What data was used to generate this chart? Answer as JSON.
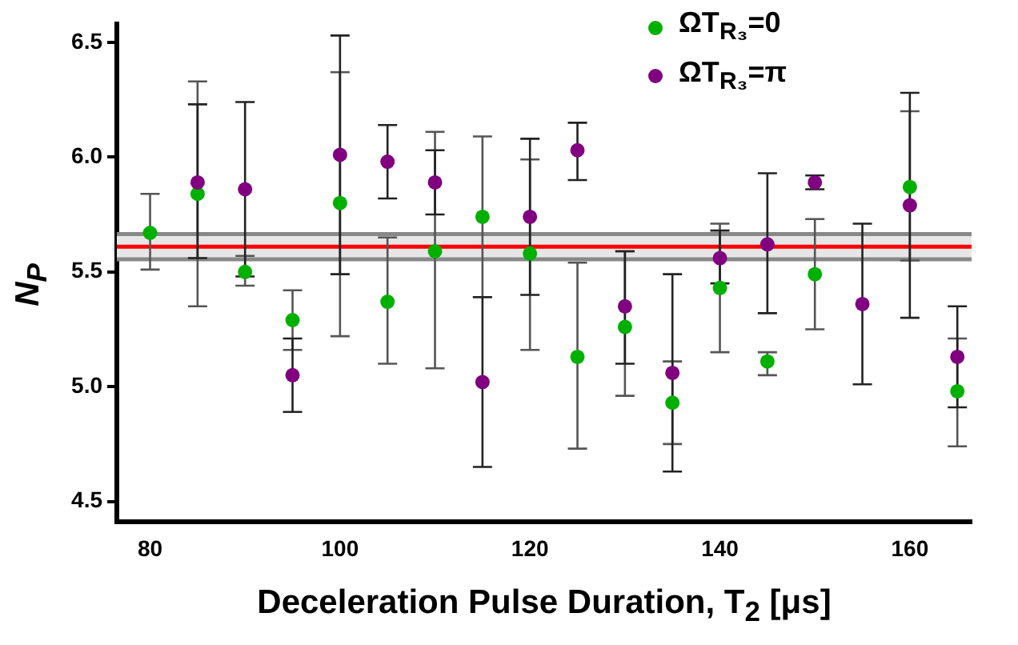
{
  "chart_data": {
    "type": "scatter",
    "xlabel": "Deceleration Pulse Duration, T$_{2}$ [μs]",
    "ylabel": "N$_{P}$",
    "x": [
      80,
      85,
      90,
      95,
      100,
      105,
      110,
      115,
      120,
      125,
      130,
      135,
      140,
      145,
      150,
      155,
      160,
      165
    ],
    "series": [
      {
        "name": "ΩT$_{R₃}$=0",
        "color": "#00b000",
        "values": [
          5.67,
          5.84,
          5.5,
          5.29,
          5.8,
          5.37,
          5.59,
          5.74,
          5.58,
          5.13,
          5.26,
          4.93,
          5.43,
          5.11,
          5.49,
          null,
          5.87,
          4.98
        ],
        "errors": [
          [
            5.51,
            5.84
          ],
          [
            5.35,
            6.33
          ],
          [
            5.44,
            5.57
          ],
          [
            5.16,
            5.42
          ],
          [
            5.22,
            6.37
          ],
          [
            5.1,
            5.65
          ],
          [
            5.08,
            6.11
          ],
          [
            5.39,
            6.09
          ],
          [
            5.16,
            5.99
          ],
          [
            4.73,
            5.54
          ],
          [
            4.96,
            5.59
          ],
          [
            4.75,
            5.11
          ],
          [
            5.15,
            5.71
          ],
          [
            5.05,
            5.15
          ],
          [
            5.25,
            5.73
          ],
          null,
          [
            5.55,
            6.2
          ],
          [
            4.74,
            5.21
          ]
        ]
      },
      {
        "name": "ΩT$_{R₃}$=π",
        "color": "#800080",
        "values": [
          null,
          5.89,
          5.86,
          5.05,
          6.01,
          5.98,
          5.89,
          5.02,
          5.74,
          6.03,
          5.35,
          5.06,
          5.56,
          5.62,
          5.89,
          5.36,
          5.79,
          5.13
        ],
        "errors": [
          null,
          [
            5.56,
            6.23
          ],
          [
            5.48,
            6.24
          ],
          [
            4.89,
            5.21
          ],
          [
            5.49,
            6.53
          ],
          [
            5.82,
            6.14
          ],
          [
            5.75,
            6.03
          ],
          [
            4.65,
            5.39
          ],
          [
            5.4,
            6.08
          ],
          [
            5.9,
            6.15
          ],
          [
            5.1,
            5.59
          ],
          [
            4.63,
            5.49
          ],
          [
            5.45,
            5.68
          ],
          [
            5.32,
            5.93
          ],
          [
            5.86,
            5.92
          ],
          [
            5.01,
            5.71
          ],
          [
            5.3,
            6.28
          ],
          [
            4.91,
            5.35
          ]
        ]
      }
    ],
    "xlim": [
      76.5,
      166.5
    ],
    "xticks": [
      80,
      100,
      120,
      140,
      160
    ],
    "ylim": [
      4.41,
      6.58
    ],
    "yticks": [
      4.5,
      {
        "value": 5,
        "label": "5.0"
      },
      5.5,
      {
        "value": 6,
        "label": "6.0"
      },
      6.5
    ],
    "ref_lines": [
      {
        "axis": "y",
        "value": 5.61,
        "color": "#ff0000"
      },
      {
        "axis": "y",
        "value": 5.555,
        "color": "#888888"
      },
      {
        "axis": "y",
        "value": 5.665,
        "color": "#888888"
      }
    ],
    "bands": [
      {
        "axis": "y",
        "from": 5.555,
        "to": 5.665,
        "color": "#e6e6e6"
      }
    ],
    "grid": false,
    "legend": "top right",
    "marker": "circle"
  }
}
